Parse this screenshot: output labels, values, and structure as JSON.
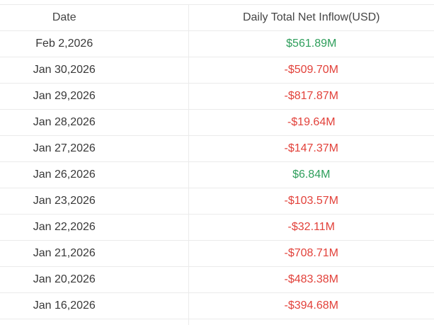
{
  "table": {
    "columns": [
      "Date",
      "Daily Total Net Inflow(USD)"
    ],
    "rows": [
      {
        "date": "Feb 2,2026",
        "value": "$561.89M",
        "direction": "positive"
      },
      {
        "date": "Jan 30,2026",
        "value": "-$509.70M",
        "direction": "negative"
      },
      {
        "date": "Jan 29,2026",
        "value": "-$817.87M",
        "direction": "negative"
      },
      {
        "date": "Jan 28,2026",
        "value": "-$19.64M",
        "direction": "negative"
      },
      {
        "date": "Jan 27,2026",
        "value": "-$147.37M",
        "direction": "negative"
      },
      {
        "date": "Jan 26,2026",
        "value": "$6.84M",
        "direction": "positive"
      },
      {
        "date": "Jan 23,2026",
        "value": "-$103.57M",
        "direction": "negative"
      },
      {
        "date": "Jan 22,2026",
        "value": "-$32.11M",
        "direction": "negative"
      },
      {
        "date": "Jan 21,2026",
        "value": "-$708.71M",
        "direction": "negative"
      },
      {
        "date": "Jan 20,2026",
        "value": "-$483.38M",
        "direction": "negative"
      },
      {
        "date": "Jan 16,2026",
        "value": "-$394.68M",
        "direction": "negative"
      }
    ]
  },
  "colors": {
    "positive": "#2e9e5b",
    "negative": "#e2413a",
    "border": "#ebebeb",
    "header_text": "#454545",
    "date_text": "#383838"
  }
}
